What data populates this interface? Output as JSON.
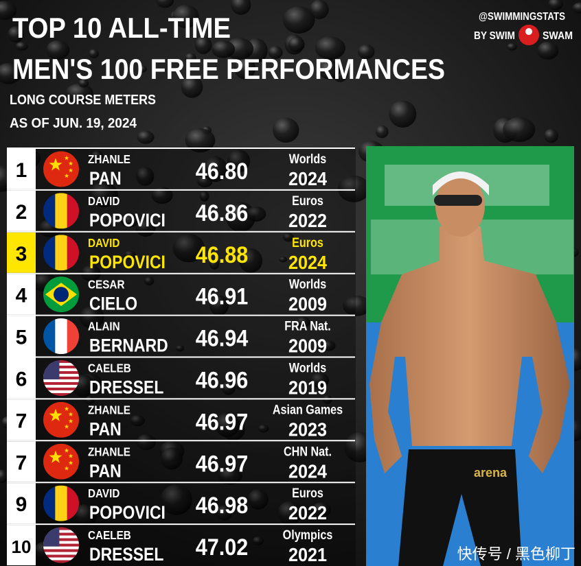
{
  "header": {
    "title_lines": [
      "TOP 10 ALL-TIME",
      "MEN'S 100 FREE PERFORMANCES"
    ],
    "subtitle_lines": [
      "LONG COURSE METERS",
      "AS OF JUN. 19, 2024"
    ]
  },
  "brand": {
    "handle": "@SWIMMINGSTATS",
    "by": "BY SWIM",
    "swam": "SWAM"
  },
  "table": {
    "rows": [
      {
        "rank": "1",
        "first": "ZHANLE",
        "last": "PAN",
        "time": "46.80",
        "meet": "Worlds",
        "year": "2024"
      },
      {
        "rank": "2",
        "first": "DAVID",
        "last": "POPOVICI",
        "time": "46.86",
        "meet": "Euros",
        "year": "2022"
      },
      {
        "rank": "3",
        "first": "DAVID",
        "last": "POPOVICI",
        "time": "46.88",
        "meet": "Euros",
        "year": "2024"
      },
      {
        "rank": "4",
        "first": "CESAR",
        "last": "CIELO",
        "time": "46.91",
        "meet": "Worlds",
        "year": "2009"
      },
      {
        "rank": "5",
        "first": "ALAIN",
        "last": "BERNARD",
        "time": "46.94",
        "meet": "FRA Nat.",
        "year": "2009"
      },
      {
        "rank": "6",
        "first": "CAELEB",
        "last": "DRESSEL",
        "time": "46.96",
        "meet": "Worlds",
        "year": "2019"
      },
      {
        "rank": "7",
        "first": "ZHANLE",
        "last": "PAN",
        "time": "46.97",
        "meet": "Asian Games",
        "year": "2023"
      },
      {
        "rank": "7",
        "first": "ZHANLE",
        "last": "PAN",
        "time": "46.97",
        "meet": "CHN Nat.",
        "year": "2024"
      },
      {
        "rank": "9",
        "first": "DAVID",
        "last": "POPOVICI",
        "time": "46.98",
        "meet": "Euros",
        "year": "2022"
      },
      {
        "rank": "10",
        "first": "CAELEB",
        "last": "DRESSEL",
        "time": "47.02",
        "meet": "Olympics",
        "year": "2021"
      }
    ]
  },
  "watermark": "快传号 / 黑色柳丁"
}
